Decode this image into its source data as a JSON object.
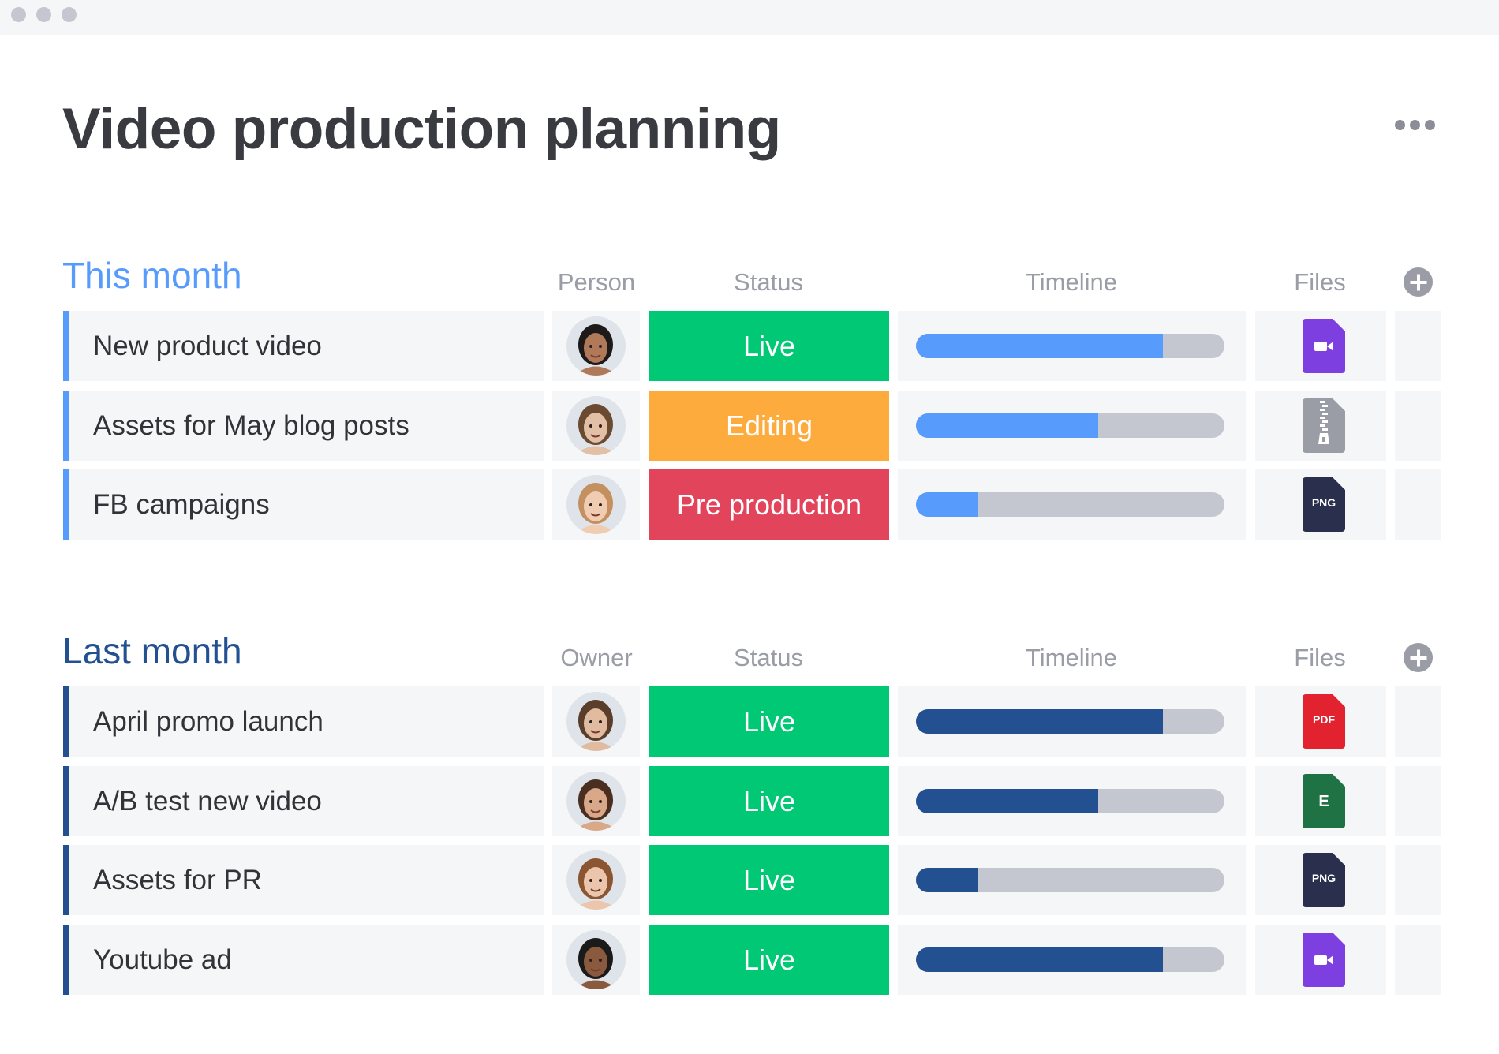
{
  "page": {
    "title": "Video production planning",
    "more_icon": "more-horizontal-icon"
  },
  "colors": {
    "live": "#00c875",
    "editing": "#fdab3d",
    "pre_production": "#e2445c",
    "this_month": "#579bfc",
    "last_month": "#225091",
    "track": "#c5c7d0"
  },
  "groups": [
    {
      "title": "This month",
      "color": "#579bfc",
      "headers": {
        "person": "Person",
        "status": "Status",
        "timeline": "Timeline",
        "files": "Files"
      },
      "rows": [
        {
          "name": "New product video",
          "status": "Live",
          "status_color": "#00c875",
          "progress": 0.8,
          "file": {
            "type": "video",
            "label": "",
            "color": "#7e3fe0"
          },
          "avatar": {
            "skin": "#b07a5a",
            "hair": "#1e1a1a"
          }
        },
        {
          "name": "Assets for May blog posts",
          "status": "Editing",
          "status_color": "#fdab3d",
          "progress": 0.59,
          "file": {
            "type": "zip",
            "label": "",
            "color": "#9a9ca6"
          },
          "avatar": {
            "skin": "#e2bfa5",
            "hair": "#6b4a32"
          }
        },
        {
          "name": "FB campaigns",
          "status": "Pre production",
          "status_color": "#e2445c",
          "progress": 0.2,
          "file": {
            "type": "png",
            "label": "PNG",
            "color": "#292f4c"
          },
          "avatar": {
            "skin": "#f0cdb2",
            "hair": "#c49060"
          }
        }
      ]
    },
    {
      "title": "Last month",
      "color": "#225091",
      "headers": {
        "person": "Owner",
        "status": "Status",
        "timeline": "Timeline",
        "files": "Files"
      },
      "rows": [
        {
          "name": "April promo launch",
          "status": "Live",
          "status_color": "#00c875",
          "progress": 0.8,
          "file": {
            "type": "pdf",
            "label": "PDF",
            "color": "#e2222e"
          },
          "avatar": {
            "skin": "#e0bba0",
            "hair": "#5a3d2a"
          }
        },
        {
          "name": "A/B test new video",
          "status": "Live",
          "status_color": "#00c875",
          "progress": 0.59,
          "file": {
            "type": "excel",
            "label": "E",
            "color": "#1f7244"
          },
          "avatar": {
            "skin": "#d8a888",
            "hair": "#4a2e20"
          }
        },
        {
          "name": "Assets for PR",
          "status": "Live",
          "status_color": "#00c875",
          "progress": 0.2,
          "file": {
            "type": "png",
            "label": "PNG",
            "color": "#292f4c"
          },
          "avatar": {
            "skin": "#ecc6ac",
            "hair": "#8a5530"
          }
        },
        {
          "name": "Youtube ad",
          "status": "Live",
          "status_color": "#00c875",
          "progress": 0.8,
          "file": {
            "type": "video",
            "label": "",
            "color": "#7e3fe0"
          },
          "avatar": {
            "skin": "#8a5a3e",
            "hair": "#1a1a1a"
          }
        }
      ]
    }
  ]
}
